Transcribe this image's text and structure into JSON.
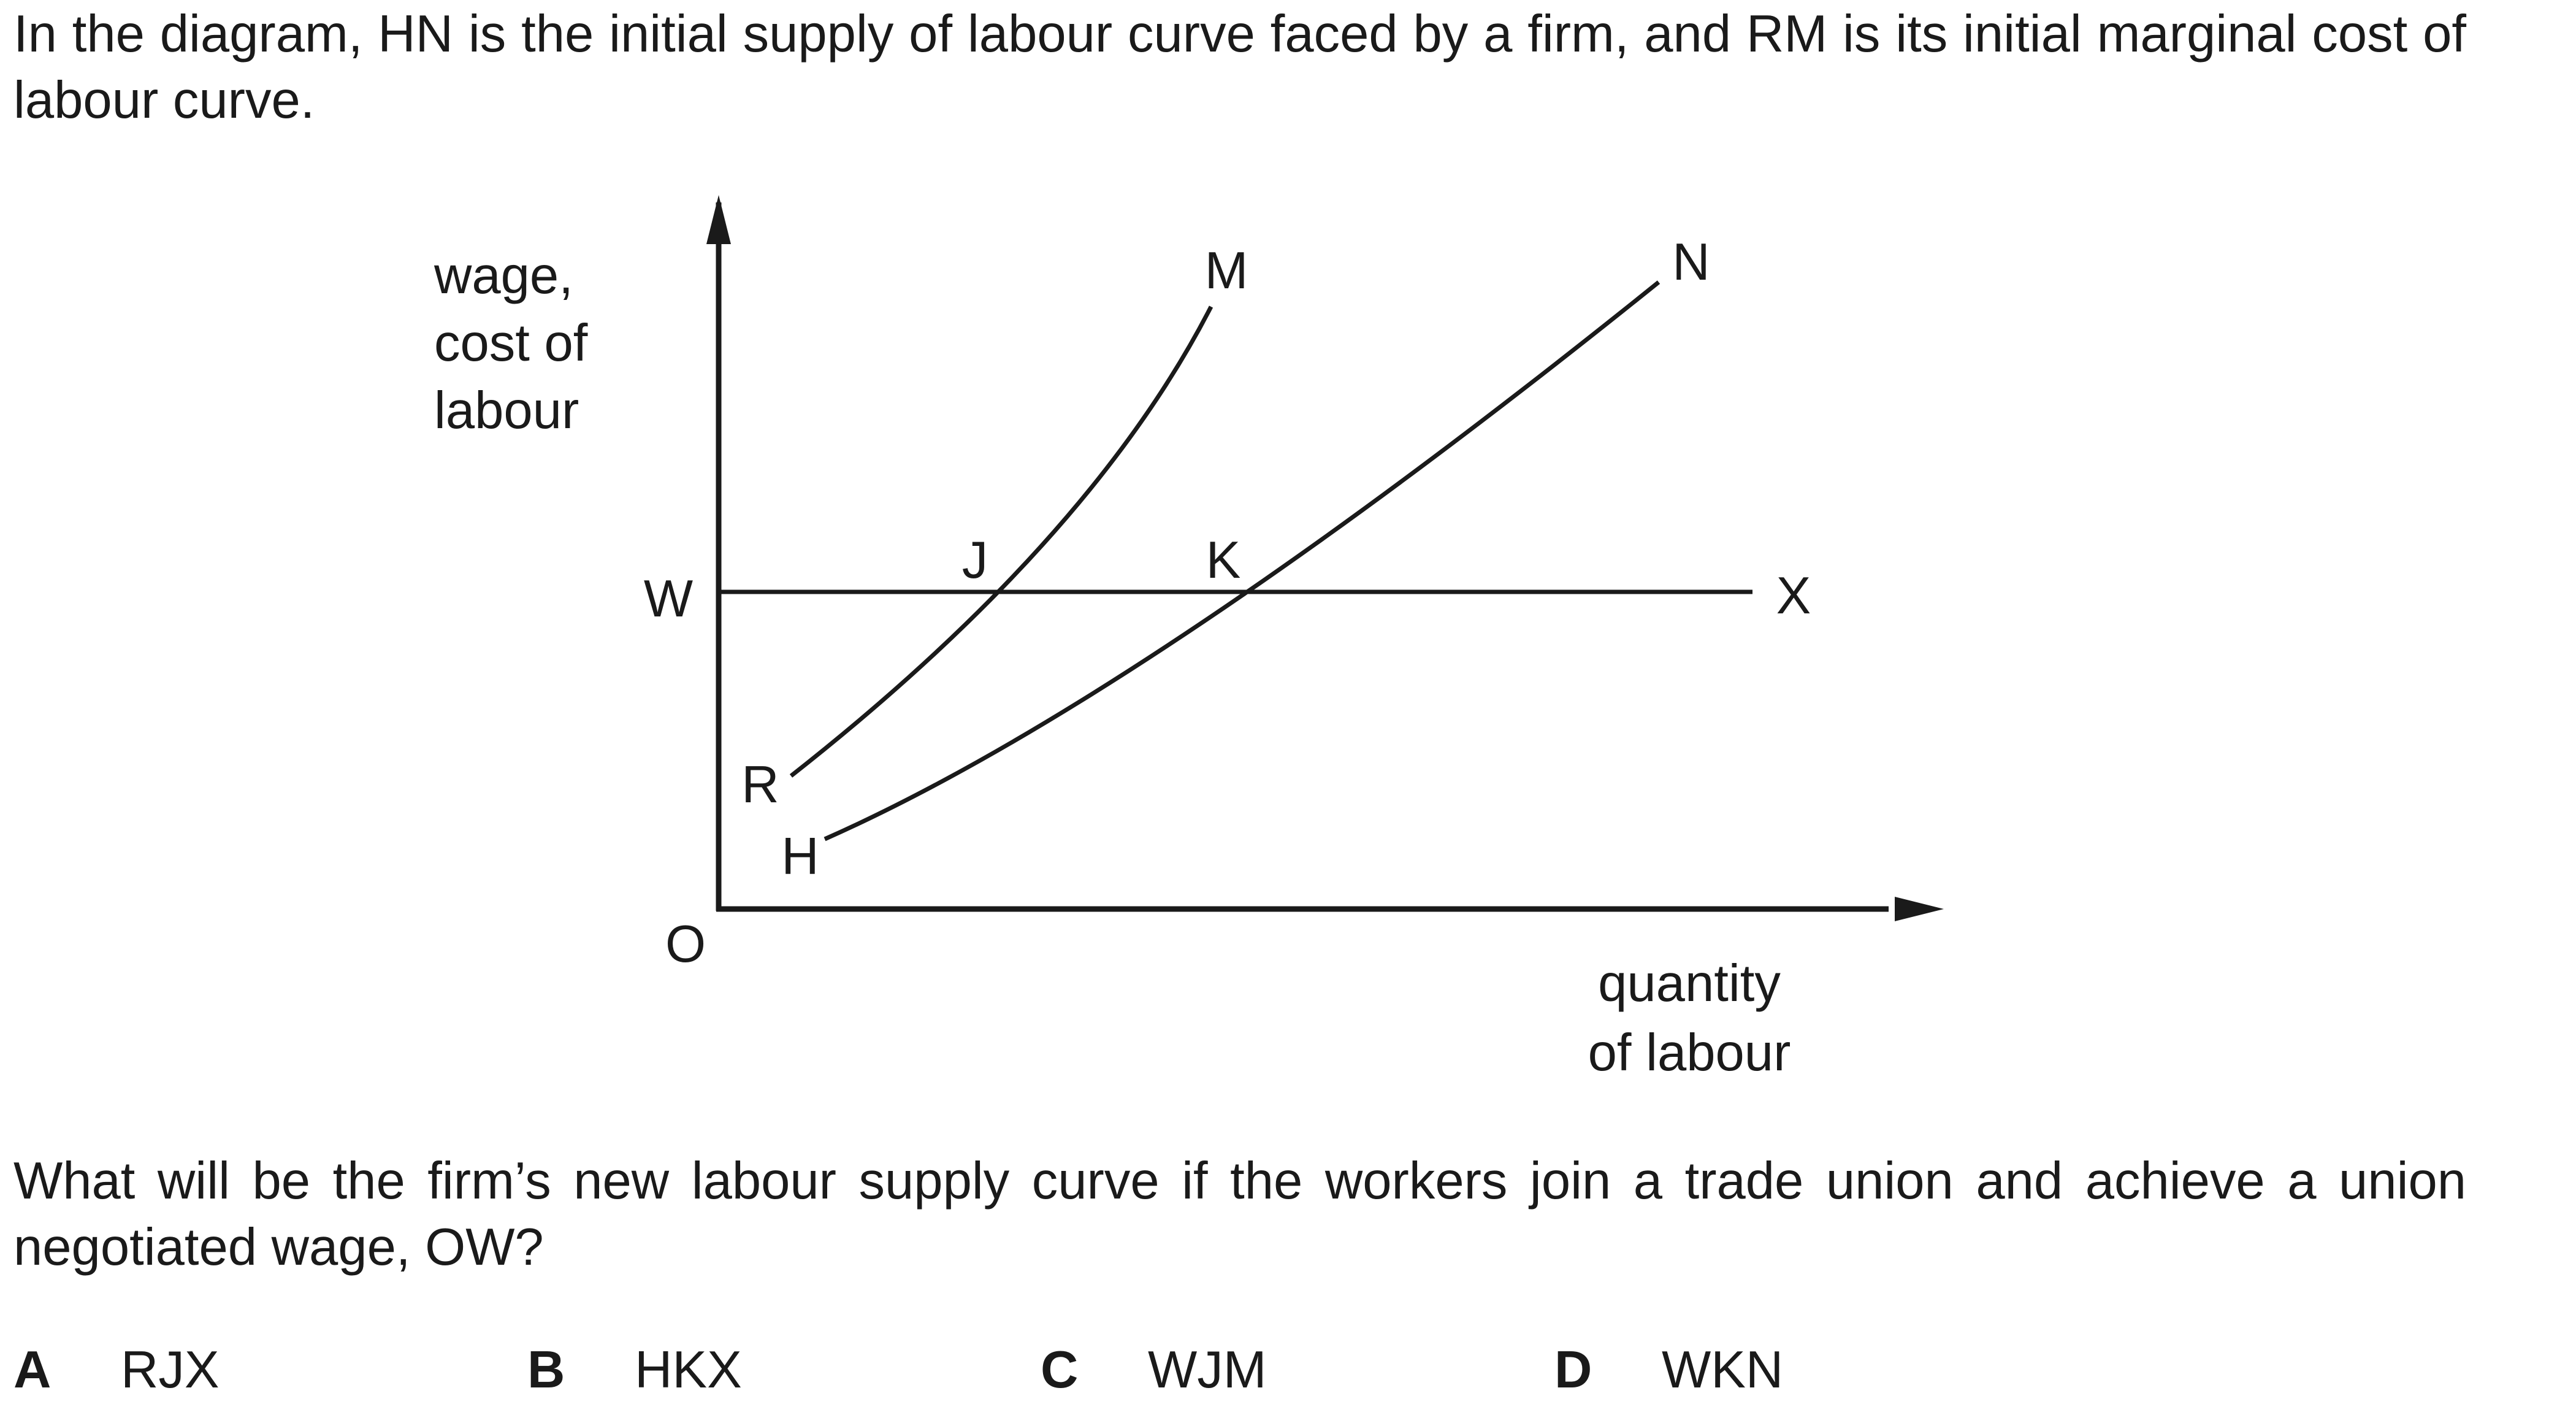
{
  "question": {
    "intro": "In the diagram, HN is the initial supply of labour curve faced by a firm, and RM is its initial marginal cost of labour curve.",
    "stem": "What will be the firm’s new labour supply curve if the workers join a trade union and achieve a union negotiated wage, OW?"
  },
  "diagram": {
    "y_axis_label": [
      "wage,",
      "cost of",
      "labour"
    ],
    "x_axis_label": [
      "quantity",
      "of labour"
    ],
    "origin_label": "O",
    "wage_label": "W",
    "points": {
      "M": "M",
      "N": "N",
      "J": "J",
      "K": "K",
      "X": "X",
      "R": "R",
      "H": "H"
    }
  },
  "options": [
    {
      "letter": "A",
      "text": "RJX"
    },
    {
      "letter": "B",
      "text": "HKX"
    },
    {
      "letter": "C",
      "text": "WJM"
    },
    {
      "letter": "D",
      "text": "WKN"
    }
  ]
}
